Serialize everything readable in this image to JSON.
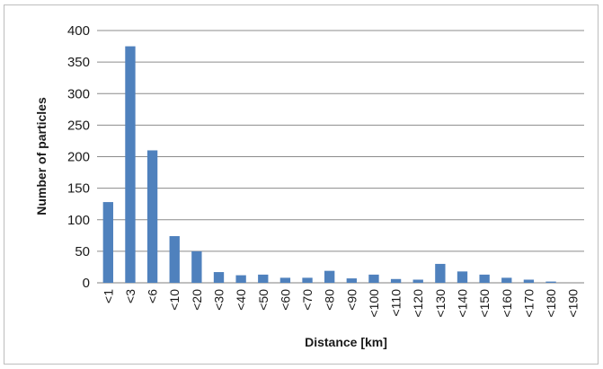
{
  "chart_data": {
    "type": "bar",
    "title": "",
    "xlabel": "Distance [km]",
    "ylabel": "Number of particles",
    "categories": [
      "<1",
      "<3",
      "<6",
      "<10",
      "<20",
      "<30",
      "<40",
      "<50",
      "<60",
      "<70",
      "<80",
      "<90",
      "<100",
      "<110",
      "<120",
      "<130",
      "<140",
      "<150",
      "<160",
      "<170",
      "<180",
      "<190"
    ],
    "values": [
      128,
      375,
      210,
      74,
      50,
      17,
      12,
      13,
      8,
      8,
      19,
      7,
      13,
      6,
      5,
      30,
      18,
      13,
      8,
      5,
      2,
      0
    ],
    "ylim": [
      0,
      400
    ],
    "yticks": [
      "0",
      "50",
      "100",
      "150",
      "200",
      "250",
      "300",
      "350",
      "400"
    ],
    "grid": true,
    "legend": "none",
    "colors": {
      "bar": "#4f81bd",
      "grid": "#8c8c8c"
    }
  }
}
